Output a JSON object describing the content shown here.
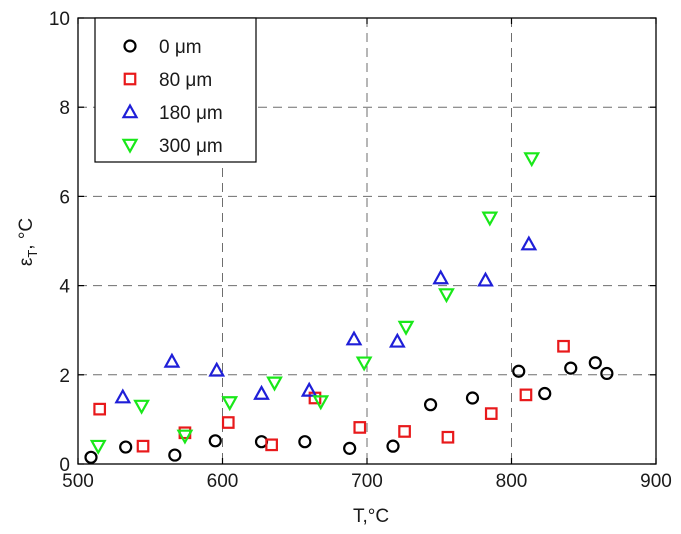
{
  "chart_data": {
    "type": "scatter",
    "title": "",
    "xlabel": "T,°C",
    "ylabel": "εT, °C",
    "ylabel_parts": {
      "symbol": "ε",
      "sub": "T",
      "suffix": ", °C"
    },
    "xlim": [
      500,
      900
    ],
    "ylim": [
      0,
      10
    ],
    "xticks": [
      500,
      600,
      700,
      800,
      900
    ],
    "yticks": [
      0,
      2,
      4,
      6,
      8,
      10
    ],
    "grid": true,
    "legend_position": "top-left",
    "series": [
      {
        "name": "0 μm",
        "marker": "circle",
        "color": "#000000",
        "x": [
          509,
          533,
          567,
          595,
          627,
          657,
          688,
          718,
          744,
          773,
          805,
          823,
          841,
          858,
          866
        ],
        "y": [
          0.15,
          0.38,
          0.2,
          0.52,
          0.5,
          0.5,
          0.35,
          0.4,
          1.33,
          1.48,
          2.08,
          1.58,
          2.15,
          2.27,
          2.03
        ]
      },
      {
        "name": "80 μm",
        "marker": "square",
        "color": "#e8191b",
        "x": [
          515,
          545,
          574,
          604,
          634,
          664,
          695,
          726,
          756,
          786,
          810,
          836
        ],
        "y": [
          1.23,
          0.4,
          0.7,
          0.93,
          0.43,
          1.48,
          0.82,
          0.73,
          0.6,
          1.13,
          1.55,
          2.64
        ]
      },
      {
        "name": "180 μm",
        "marker": "triangle-up",
        "color": "#1f1fd8",
        "x": [
          531,
          565,
          596,
          627,
          660,
          691,
          721,
          751,
          782,
          812
        ],
        "y": [
          1.5,
          2.3,
          2.1,
          1.58,
          1.65,
          2.8,
          2.75,
          4.17,
          4.12,
          4.93
        ]
      },
      {
        "name": "300 μm",
        "marker": "triangle-down",
        "color": "#19e819",
        "x": [
          514,
          544,
          574,
          605,
          636,
          668,
          698,
          727,
          755,
          785,
          814
        ],
        "y": [
          0.4,
          1.3,
          0.63,
          1.38,
          1.82,
          1.4,
          2.27,
          3.07,
          3.8,
          5.52,
          6.85
        ]
      }
    ]
  }
}
